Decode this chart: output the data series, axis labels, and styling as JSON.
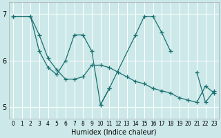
{
  "xlabel": "Humidex (Indice chaleur)",
  "ylabel": "",
  "bg_color": "#cce8e8",
  "grid_color": "#ffffff",
  "line_color": "#1a7070",
  "xlim": [
    -0.5,
    23.5
  ],
  "ylim": [
    4.75,
    7.25
  ],
  "yticks": [
    5,
    6,
    7
  ],
  "xticks": [
    0,
    1,
    2,
    3,
    4,
    5,
    6,
    7,
    8,
    9,
    10,
    11,
    12,
    13,
    14,
    15,
    16,
    17,
    18,
    19,
    20,
    21,
    22,
    23
  ],
  "series": [
    {
      "x": [
        0,
        2,
        3,
        4,
        5,
        6,
        7,
        8,
        9,
        10,
        11,
        12,
        13,
        14,
        15,
        16,
        17,
        18,
        19,
        20,
        21,
        22,
        23
      ],
      "y": [
        6.95,
        6.95,
        6.55,
        6.05,
        5.8,
        5.6,
        5.6,
        5.65,
        5.9,
        5.9,
        5.85,
        5.75,
        5.65,
        5.55,
        5.5,
        5.4,
        5.35,
        5.3,
        5.2,
        5.15,
        5.1,
        5.45,
        5.3
      ]
    },
    {
      "x": [
        0,
        2,
        3,
        4,
        5,
        6,
        7,
        8,
        9,
        10,
        11,
        14,
        15,
        16,
        17,
        18
      ],
      "y": [
        6.95,
        6.95,
        6.2,
        5.85,
        5.7,
        6.0,
        6.55,
        6.55,
        6.2,
        5.05,
        5.4,
        6.55,
        6.95,
        6.95,
        6.6,
        6.2
      ]
    },
    {
      "x": [
        10,
        11
      ],
      "y": [
        5.05,
        5.4
      ]
    },
    {
      "x": [
        21,
        22,
        23
      ],
      "y": [
        5.75,
        5.1,
        5.35
      ]
    }
  ]
}
